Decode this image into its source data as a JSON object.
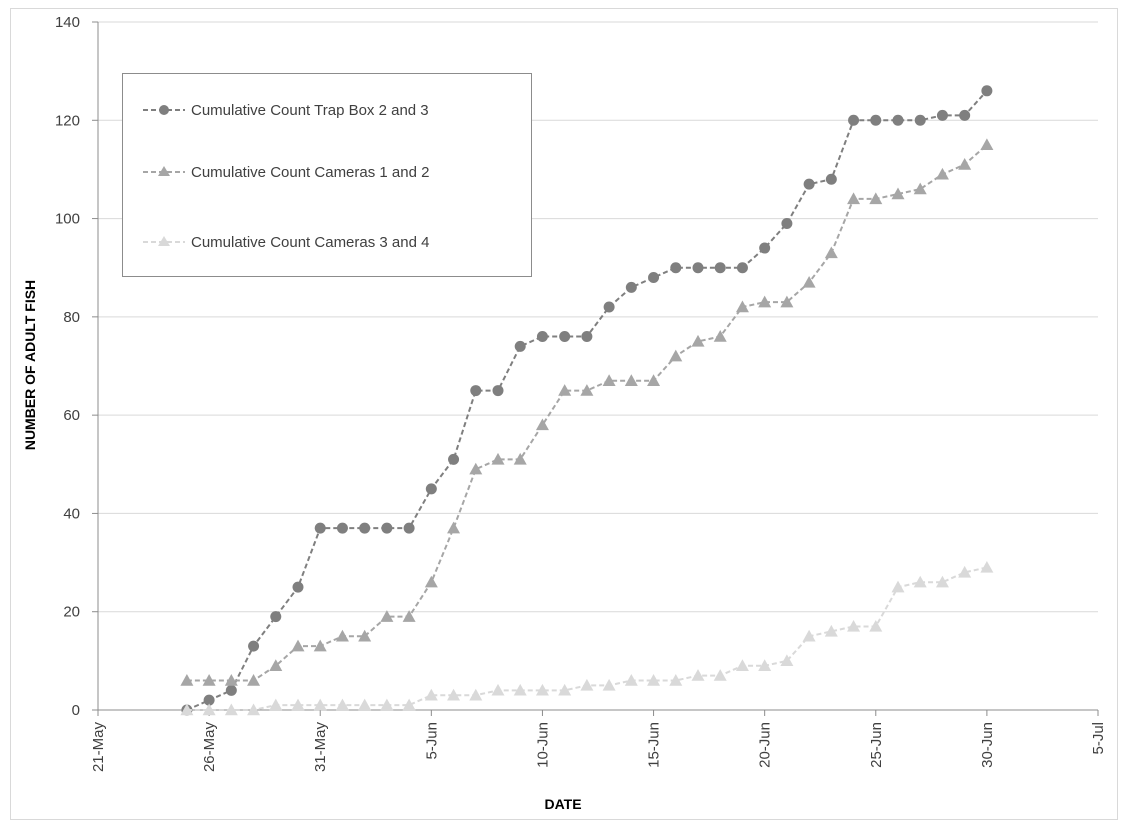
{
  "chart_data": {
    "type": "line",
    "title": "",
    "xlabel": "DATE",
    "ylabel": "NUMBER OF ADULT FISH",
    "ylim": [
      0,
      140
    ],
    "yticks": [
      0,
      20,
      40,
      60,
      80,
      100,
      120,
      140
    ],
    "xlim": [
      "2013-05-21",
      "2013-07-05"
    ],
    "xticks": [
      "21-May",
      "26-May",
      "31-May",
      "5-Jun",
      "10-Jun",
      "15-Jun",
      "20-Jun",
      "25-Jun",
      "30-Jun",
      "5-Jul"
    ],
    "x_dates": [
      "25-May",
      "26-May",
      "27-May",
      "28-May",
      "29-May",
      "30-May",
      "31-May",
      "1-Jun",
      "2-Jun",
      "3-Jun",
      "4-Jun",
      "5-Jun",
      "6-Jun",
      "7-Jun",
      "8-Jun",
      "9-Jun",
      "10-Jun",
      "11-Jun",
      "12-Jun",
      "13-Jun",
      "14-Jun",
      "15-Jun",
      "16-Jun",
      "17-Jun",
      "18-Jun",
      "19-Jun",
      "20-Jun",
      "21-Jun",
      "22-Jun",
      "23-Jun",
      "24-Jun",
      "25-Jun",
      "26-Jun",
      "27-Jun",
      "28-Jun",
      "29-Jun",
      "30-Jun"
    ],
    "grid": true,
    "legend_position": "top-left",
    "series": [
      {
        "name": "Cumulative Count Trap Box 2 and 3",
        "marker": "circle",
        "color": "#7f7f7f",
        "values": [
          0,
          2,
          4,
          13,
          19,
          25,
          37,
          37,
          37,
          37,
          37,
          45,
          51,
          65,
          65,
          74,
          76,
          76,
          76,
          82,
          86,
          88,
          90,
          90,
          90,
          90,
          94,
          99,
          107,
          108,
          120,
          120,
          120,
          120,
          121,
          121,
          126
        ]
      },
      {
        "name": "Cumulative Count Cameras 1 and 2",
        "marker": "triangle",
        "color": "#a6a6a6",
        "values": [
          6,
          6,
          6,
          6,
          9,
          13,
          13,
          15,
          15,
          19,
          19,
          26,
          37,
          49,
          51,
          51,
          58,
          65,
          65,
          67,
          67,
          67,
          72,
          75,
          76,
          82,
          83,
          83,
          87,
          93,
          104,
          104,
          105,
          106,
          109,
          111,
          115
        ]
      },
      {
        "name": "Cumulative Count Cameras 3 and 4",
        "marker": "triangle",
        "color": "#d9d9d9",
        "values": [
          0,
          0,
          0,
          0,
          1,
          1,
          1,
          1,
          1,
          1,
          1,
          3,
          3,
          3,
          4,
          4,
          4,
          4,
          5,
          5,
          6,
          6,
          6,
          7,
          7,
          9,
          9,
          10,
          15,
          16,
          17,
          17,
          25,
          26,
          26,
          28,
          29
        ]
      }
    ]
  }
}
